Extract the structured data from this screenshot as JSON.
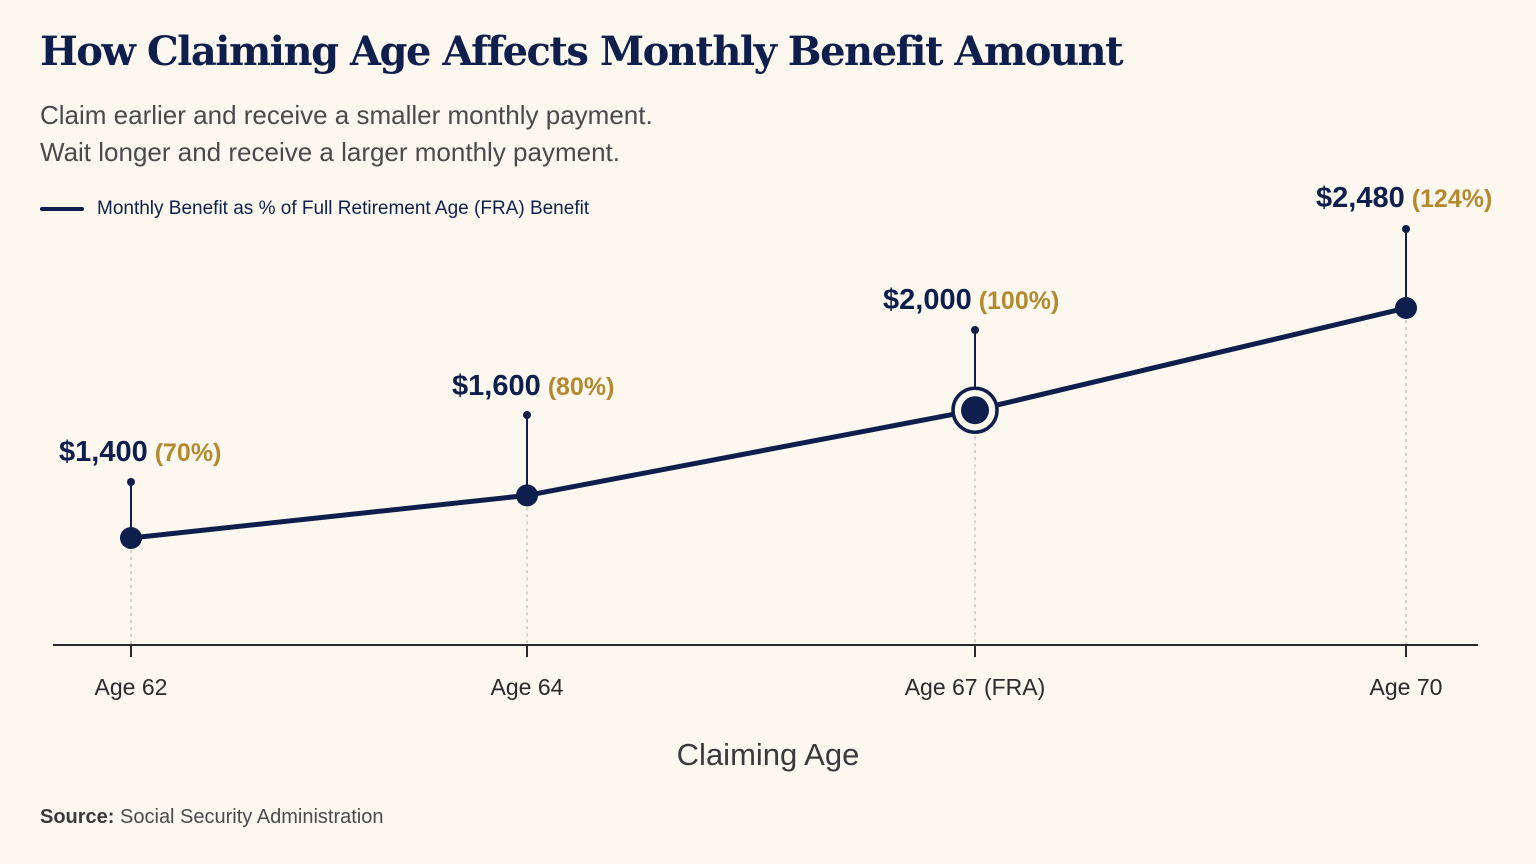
{
  "header": {
    "title": "How Claiming Age Affects Monthly Benefit Amount",
    "subtitle_line1": "Claim earlier and receive a smaller monthly payment.",
    "subtitle_line2": "Wait longer and receive a larger monthly payment."
  },
  "footer": {
    "source_label": "Source:",
    "source_text": "Social Security Administration"
  },
  "colors": {
    "line": "#0e1f4d",
    "accent_gold": "#b48a30",
    "background": "#fcf8ef",
    "gridline": "#c9c4b8"
  },
  "chart_data": {
    "type": "line",
    "title": "How Claiming Age Affects Monthly Benefit Amount",
    "xlabel": "Claiming Age",
    "ylabel": "",
    "x": [
      62,
      64,
      67,
      70
    ],
    "categories": [
      "Age 62",
      "Age 64",
      "Age 67 (FRA)",
      "Age 70"
    ],
    "series": [
      {
        "name": "Monthly Benefit as % of Full Retirement Age (FRA) Benefit",
        "values": [
          1400,
          1600,
          2000,
          2480
        ],
        "percent_of_fra": [
          70,
          80,
          100,
          124
        ]
      }
    ],
    "value_labels": [
      "$1,400",
      "$1,600",
      "$2,000",
      "$2,480"
    ],
    "percent_labels": [
      "(70%)",
      "(80%)",
      "(100%)",
      "(124%)"
    ],
    "highlighted_category": "Age 67 (FRA)",
    "grid": false,
    "legend_position": "top-left"
  }
}
